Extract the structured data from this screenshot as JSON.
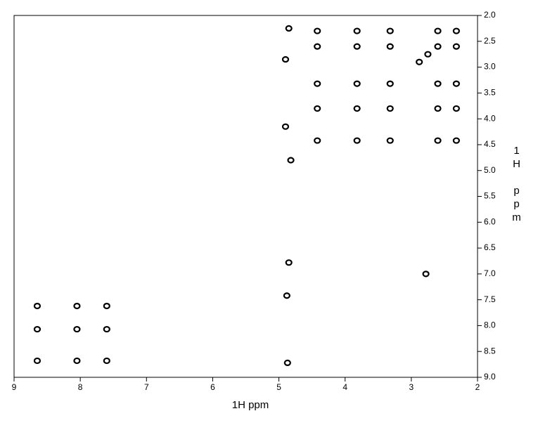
{
  "chart_data": {
    "type": "scatter",
    "xlabel": "1H ppm",
    "ylabel": "1H ppm",
    "xlim": [
      9,
      2
    ],
    "ylim": [
      2,
      9
    ],
    "xticks": [
      9,
      8,
      7,
      6,
      5,
      4,
      3,
      2
    ],
    "yticks": [
      {
        "value": 2,
        "label": "2.0"
      },
      {
        "value": 2.5,
        "label": "2.5"
      },
      {
        "value": 3,
        "label": "3.0"
      },
      {
        "value": 3.5,
        "label": "3.5"
      },
      {
        "value": 4,
        "label": "4.0"
      },
      {
        "value": 4.5,
        "label": "4.5"
      },
      {
        "value": 5,
        "label": "5.0"
      },
      {
        "value": 5.5,
        "label": "5.5"
      },
      {
        "value": 6,
        "label": "6.0"
      },
      {
        "value": 6.5,
        "label": "6.5"
      },
      {
        "value": 7,
        "label": "7.0"
      },
      {
        "value": 7.5,
        "label": "7.5"
      },
      {
        "value": 8,
        "label": "8.0"
      },
      {
        "value": 8.5,
        "label": "8.5"
      },
      {
        "value": 9,
        "label": "9.0"
      }
    ],
    "color": "#000000",
    "x": [
      8.65,
      8.05,
      7.6,
      8.65,
      8.05,
      7.6,
      8.65,
      8.05,
      7.6,
      4.42,
      3.82,
      3.32,
      2.6,
      2.32,
      4.42,
      3.82,
      3.32,
      2.6,
      2.32,
      4.42,
      3.82,
      3.32,
      2.6,
      2.32,
      4.42,
      3.82,
      3.32,
      2.6,
      2.32,
      4.42,
      3.82,
      3.32,
      2.6,
      2.32,
      4.85,
      4.9,
      4.9,
      4.82,
      4.85,
      4.88,
      4.87,
      2.75,
      2.88,
      2.78
    ],
    "values": [
      7.62,
      7.62,
      7.62,
      8.07,
      8.07,
      8.07,
      8.68,
      8.68,
      8.68,
      2.3,
      2.3,
      2.3,
      2.3,
      2.3,
      2.6,
      2.6,
      2.6,
      2.6,
      2.6,
      3.32,
      3.32,
      3.32,
      3.32,
      3.32,
      3.8,
      3.8,
      3.8,
      3.8,
      3.8,
      4.42,
      4.42,
      4.42,
      4.42,
      4.42,
      2.25,
      2.85,
      4.15,
      4.8,
      6.78,
      7.42,
      8.72,
      2.75,
      2.9,
      7.0
    ]
  }
}
